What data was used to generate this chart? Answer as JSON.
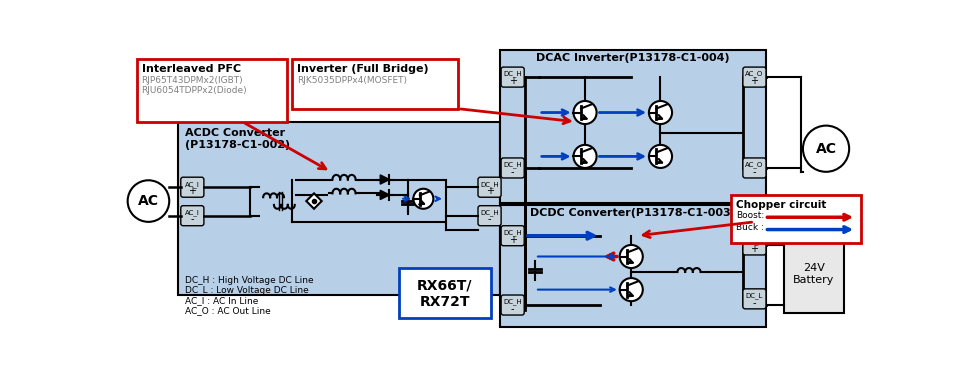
{
  "fig_width": 9.65,
  "fig_height": 3.73,
  "dpi": 100,
  "bg_color": "#ffffff",
  "box_blue": "#b8cfe8",
  "dark_blue": "#0040c0",
  "red_color": "#cc0000",
  "black": "#000000",
  "gray": "#808080",
  "connector_bg": "#c8d4dc",
  "title_dcac": "DCAC Inverter(P13178-C1-004)",
  "title_acdc": "ACDC Converter\n(P13178-C1-002)",
  "title_dcdc": "DCDC Converter(P13178-C1-003)",
  "label_pfc_title": "Interleaved PFC",
  "label_pfc_line1": "RJP65T43DPMx2(IGBT)",
  "label_pfc_line2": "RJU6054TDPPx2(Diode)",
  "label_inv_title": "Inverter (Full Bridge)",
  "label_inv_line1": "RJK5035DPPx4(MOSFET)",
  "label_rx": "RX66T/\nRX72T",
  "label_ac_left": "AC",
  "label_ac_right": "AC",
  "label_battery": "24V\nBattery",
  "label_chopper": "Chopper circuit",
  "label_boost": "Boost:",
  "label_buck": "Buck :",
  "legend_dc_h": "DC_H : High Voltage DC Line",
  "legend_dc_l": "DC_L : Low Voltage DC Line",
  "legend_ac_i": "AC_I : AC In Line",
  "legend_ac_o": "AC_O : AC Out Line"
}
